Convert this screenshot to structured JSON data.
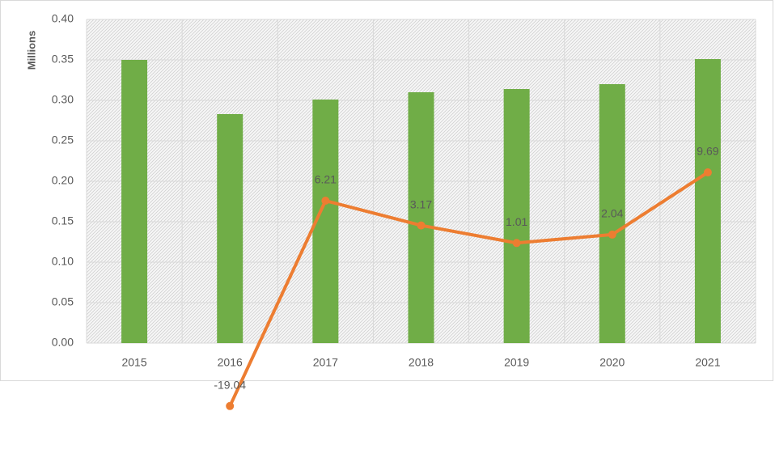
{
  "chart_data": {
    "type": "combo",
    "y_axis_label": "Millions",
    "categories": [
      "2015",
      "2016",
      "2017",
      "2018",
      "2019",
      "2020",
      "2021"
    ],
    "series": [
      {
        "type": "bar",
        "color": "#70ad47",
        "values": [
          0.35,
          0.283,
          0.301,
          0.31,
          0.314,
          0.32,
          0.351
        ]
      },
      {
        "type": "line",
        "color": "#ed7d31",
        "axis": "y2",
        "data_labels": true,
        "values": [
          null,
          -19.04,
          6.21,
          3.17,
          1.01,
          2.04,
          9.69
        ]
      }
    ],
    "ylim": [
      0,
      0.4
    ],
    "yticks": [
      {
        "value": 0,
        "label": "0.00"
      },
      {
        "value": 0.05,
        "label": "0.05"
      },
      {
        "value": 0.1,
        "label": "0.10"
      },
      {
        "value": 0.15,
        "label": "0.15"
      },
      {
        "value": 0.2,
        "label": "0.20"
      },
      {
        "value": 0.25,
        "label": "0.25"
      },
      {
        "value": 0.3,
        "label": "0.30"
      },
      {
        "value": 0.35,
        "label": "0.35"
      },
      {
        "value": 0.4,
        "label": "0.40"
      }
    ],
    "y2lim": [
      -11.3,
      28.5
    ],
    "grid": true
  }
}
